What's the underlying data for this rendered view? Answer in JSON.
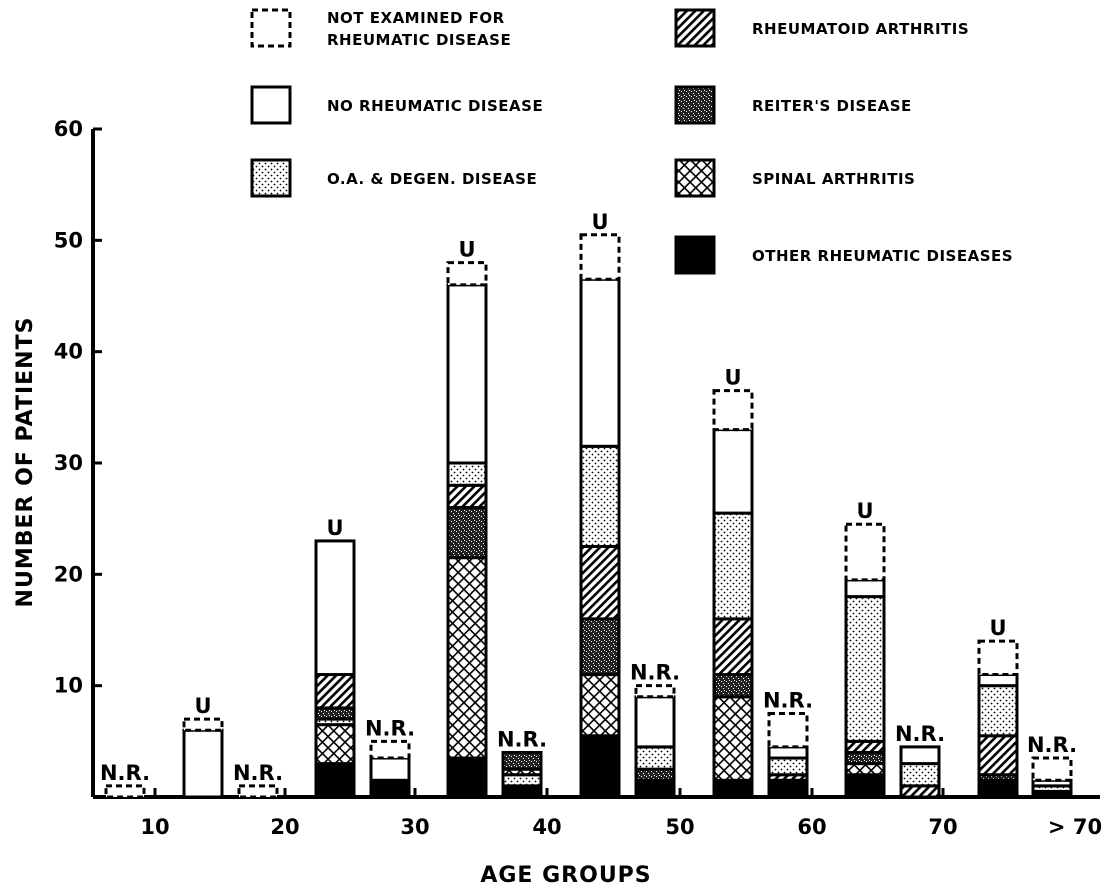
{
  "chart_data": {
    "type": "bar",
    "stacked": true,
    "xlabel": "AGE GROUPS",
    "ylabel": "NUMBER OF PATIENTS",
    "ylim": [
      0,
      60
    ],
    "y_ticks": [
      10,
      20,
      30,
      40,
      50,
      60
    ],
    "x_ticks": [
      "10",
      "20",
      "30",
      "40",
      "50",
      "60",
      "70",
      "> 70"
    ],
    "grid": false,
    "legend_position": "top",
    "legend": [
      {
        "key": "not_examined",
        "label": "NOT EXAMINED FOR RHEUMATIC DISEASE",
        "lines": [
          "NOT EXAMINED FOR",
          "RHEUMATIC DISEASE"
        ],
        "pattern": "dashed"
      },
      {
        "key": "none",
        "label": "NO RHEUMATIC DISEASE",
        "lines": [
          "NO RHEUMATIC DISEASE"
        ],
        "pattern": "open"
      },
      {
        "key": "oa",
        "label": "O.A. & DEGEN. DISEASE",
        "lines": [
          "O.A. & DEGEN. DISEASE"
        ],
        "pattern": "dots"
      },
      {
        "key": "ra",
        "label": "RHEUMATOID ARTHRITIS",
        "lines": [
          "RHEUMATOID ARTHRITIS"
        ],
        "pattern": "diagonal"
      },
      {
        "key": "reiter",
        "label": "REITER'S DISEASE",
        "lines": [
          "REITER'S DISEASE"
        ],
        "pattern": "dense-speckle"
      },
      {
        "key": "spinal",
        "label": "SPINAL ARTHRITIS",
        "lines": [
          "SPINAL ARTHRITIS"
        ],
        "pattern": "crosshatch"
      },
      {
        "key": "other",
        "label": "OTHER RHEUMATIC DISEASES",
        "lines": [
          "OTHER RHEUMATIC DISEASES"
        ],
        "pattern": "solid"
      }
    ],
    "bars": [
      {
        "group": "<10",
        "label": "N.R.",
        "segments": [
          {
            "key": "not_examined",
            "value": 1
          }
        ]
      },
      {
        "group": "10-19",
        "label": "U",
        "segments": [
          {
            "key": "none",
            "value": 6
          },
          {
            "key": "not_examined",
            "value": 1
          }
        ]
      },
      {
        "group": "10-19",
        "label": "N.R.",
        "segments": [
          {
            "key": "not_examined",
            "value": 1
          }
        ]
      },
      {
        "group": "20-29",
        "label": "U",
        "segments": [
          {
            "key": "other",
            "value": 3
          },
          {
            "key": "spinal",
            "value": 3.5
          },
          {
            "key": "oa",
            "value": 0.5
          },
          {
            "key": "reiter",
            "value": 1
          },
          {
            "key": "ra",
            "value": 3
          },
          {
            "key": "none",
            "value": 12
          }
        ]
      },
      {
        "group": "20-29",
        "label": "N.R.",
        "segments": [
          {
            "key": "other",
            "value": 1.5
          },
          {
            "key": "none",
            "value": 2
          },
          {
            "key": "not_examined",
            "value": 1.5
          }
        ]
      },
      {
        "group": "30-39",
        "label": "U",
        "segments": [
          {
            "key": "other",
            "value": 3.5
          },
          {
            "key": "spinal",
            "value": 18
          },
          {
            "key": "reiter",
            "value": 4.5
          },
          {
            "key": "ra",
            "value": 2
          },
          {
            "key": "oa",
            "value": 2
          },
          {
            "key": "none",
            "value": 16
          },
          {
            "key": "not_examined",
            "value": 2
          }
        ]
      },
      {
        "group": "30-39",
        "label": "N.R.",
        "segments": [
          {
            "key": "other",
            "value": 1
          },
          {
            "key": "oa",
            "value": 1
          },
          {
            "key": "spinal",
            "value": 0.5
          },
          {
            "key": "reiter",
            "value": 1.5
          }
        ]
      },
      {
        "group": "40-49",
        "label": "U",
        "segments": [
          {
            "key": "other",
            "value": 5.5
          },
          {
            "key": "spinal",
            "value": 5.5
          },
          {
            "key": "reiter",
            "value": 5
          },
          {
            "key": "ra",
            "value": 6.5
          },
          {
            "key": "oa",
            "value": 9
          },
          {
            "key": "none",
            "value": 15
          },
          {
            "key": "not_examined",
            "value": 4
          }
        ]
      },
      {
        "group": "40-49",
        "label": "N.R.",
        "segments": [
          {
            "key": "other",
            "value": 1.5
          },
          {
            "key": "reiter",
            "value": 1
          },
          {
            "key": "oa",
            "value": 2
          },
          {
            "key": "none",
            "value": 4.5
          },
          {
            "key": "not_examined",
            "value": 1
          }
        ]
      },
      {
        "group": "50-59",
        "label": "U",
        "segments": [
          {
            "key": "other",
            "value": 1.5
          },
          {
            "key": "spinal",
            "value": 7.5
          },
          {
            "key": "reiter",
            "value": 2
          },
          {
            "key": "ra",
            "value": 5
          },
          {
            "key": "oa",
            "value": 9.5
          },
          {
            "key": "none",
            "value": 7.5
          },
          {
            "key": "not_examined",
            "value": 3.5
          }
        ]
      },
      {
        "group": "50-59",
        "label": "N.R.",
        "segments": [
          {
            "key": "other",
            "value": 1.5
          },
          {
            "key": "ra",
            "value": 0.5
          },
          {
            "key": "oa",
            "value": 1.5
          },
          {
            "key": "none",
            "value": 1
          },
          {
            "key": "not_examined",
            "value": 3
          }
        ]
      },
      {
        "group": "60-69",
        "label": "U",
        "segments": [
          {
            "key": "other",
            "value": 2
          },
          {
            "key": "spinal",
            "value": 1
          },
          {
            "key": "reiter",
            "value": 1
          },
          {
            "key": "ra",
            "value": 1
          },
          {
            "key": "oa",
            "value": 13
          },
          {
            "key": "none",
            "value": 1.5
          },
          {
            "key": "not_examined",
            "value": 5
          }
        ]
      },
      {
        "group": "60-69",
        "label": "N.R.",
        "segments": [
          {
            "key": "ra",
            "value": 1
          },
          {
            "key": "oa",
            "value": 2
          },
          {
            "key": "none",
            "value": 1.5
          }
        ]
      },
      {
        "group": "70-79",
        "label": "U",
        "segments": [
          {
            "key": "other",
            "value": 1.5
          },
          {
            "key": "reiter",
            "value": 0.5
          },
          {
            "key": "ra",
            "value": 3.5
          },
          {
            "key": "oa",
            "value": 4.5
          },
          {
            "key": "none",
            "value": 1
          },
          {
            "key": "not_examined",
            "value": 3
          }
        ]
      },
      {
        "group": ">70",
        "label": "N.R.",
        "segments": [
          {
            "key": "other",
            "value": 0.5
          },
          {
            "key": "oa",
            "value": 0.5
          },
          {
            "key": "none",
            "value": 0.5
          },
          {
            "key": "not_examined",
            "value": 2
          }
        ]
      }
    ]
  }
}
